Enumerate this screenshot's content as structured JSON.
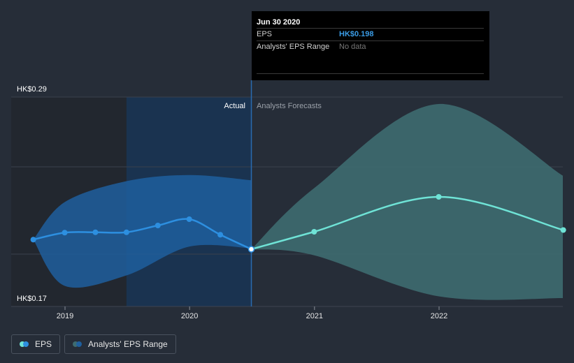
{
  "tooltip": {
    "date": "Jun 30 2020",
    "eps_label": "EPS",
    "eps_value": "HK$0.198",
    "range_label": "Analysts' EPS Range",
    "range_value": "No data"
  },
  "labels": {
    "actual": "Actual",
    "forecast": "Analysts Forecasts"
  },
  "legend": {
    "eps_label": "EPS",
    "range_label": "Analysts' EPS Range"
  },
  "colors": {
    "background": "#262d38",
    "eps_actual": "#2d8fe0",
    "eps_forecast": "#6fe3d6",
    "actual_band": "#1f5f9e",
    "forecast_band": "#3e6b70",
    "actual_region": "#1a3350"
  },
  "chart_data": {
    "type": "line",
    "title": "",
    "xlabel": "",
    "ylabel": "",
    "y_tick_labels": [
      "HK$0.29",
      "HK$0.17"
    ],
    "ylim": [
      0.17,
      0.29
    ],
    "x_tick_labels": [
      "2019",
      "2020",
      "2021",
      "2022"
    ],
    "xlim": [
      "2018-09-30",
      "2022-12-31"
    ],
    "grid": true,
    "legend_position": "bottom-left",
    "series": [
      {
        "name": "EPS",
        "points": [
          {
            "x": "2018-09-30",
            "y": 0.2035
          },
          {
            "x": "2018-12-31",
            "y": 0.2075
          },
          {
            "x": "2019-03-31",
            "y": 0.2077
          },
          {
            "x": "2019-06-30",
            "y": 0.2077
          },
          {
            "x": "2019-09-30",
            "y": 0.2116
          },
          {
            "x": "2019-12-31",
            "y": 0.2152
          },
          {
            "x": "2020-03-31",
            "y": 0.2063
          },
          {
            "x": "2020-06-30",
            "y": 0.198
          }
        ]
      },
      {
        "name": "EPS Forecast",
        "points": [
          {
            "x": "2020-06-30",
            "y": 0.198
          },
          {
            "x": "2020-12-31",
            "y": 0.208
          },
          {
            "x": "2021-12-31",
            "y": 0.228
          },
          {
            "x": "2022-12-31",
            "y": 0.209
          }
        ]
      }
    ],
    "actual_band": {
      "x": [
        "2018-09-30",
        "2018-12-31",
        "2019-06-30",
        "2019-12-31",
        "2020-06-30"
      ],
      "upper": [
        0.2035,
        0.225,
        0.237,
        0.2405,
        0.2375
      ],
      "lower": [
        0.2035,
        0.177,
        0.183,
        0.1995,
        0.1985
      ]
    },
    "forecast_band": {
      "x": [
        "2020-06-30",
        "2020-12-31",
        "2021-12-31",
        "2022-12-31"
      ],
      "upper": [
        0.198,
        0.233,
        0.2812,
        0.24
      ],
      "lower": [
        0.198,
        0.1945,
        0.171,
        0.17
      ]
    },
    "actual_region_end": "2020-06-30"
  }
}
